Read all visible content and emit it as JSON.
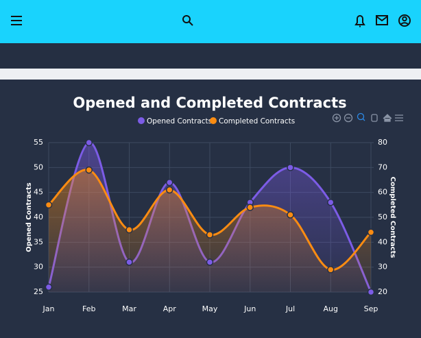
{
  "chart_data": {
    "type": "line",
    "title": "Opened and Completed Contracts",
    "categories": [
      "Jan",
      "Feb",
      "Mar",
      "Apr",
      "May",
      "Jun",
      "Jul",
      "Aug",
      "Sep"
    ],
    "series": [
      {
        "name": "Opened Contracts",
        "color": "#7c5ce6",
        "values": [
          26,
          55,
          31,
          47,
          31,
          43,
          50,
          43,
          25
        ]
      },
      {
        "name": "Completed Contracts",
        "color": "#fb8c12",
        "axis": "y2",
        "values": [
          55,
          69,
          45,
          61,
          43,
          54,
          51,
          29,
          44
        ]
      }
    ],
    "ylabel": "Opened Contracts",
    "y2label": "Completed Contracts",
    "ylim": [
      25,
      55
    ],
    "yticks": [
      25,
      30,
      35,
      40,
      45,
      50,
      55
    ],
    "y2lim": [
      20,
      80
    ],
    "y2ticks": [
      20,
      30,
      40,
      50,
      60,
      70,
      80
    ],
    "grid": true
  }
}
